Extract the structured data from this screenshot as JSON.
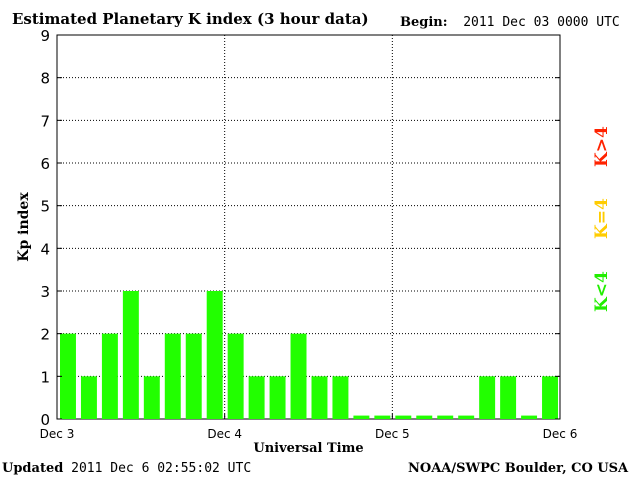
{
  "header": {
    "title": "Estimated Planetary K index (3 hour data)",
    "begin_label": "Begin:",
    "begin_value": "2011 Dec 03 0000 UTC"
  },
  "footer": {
    "updated_label": "Updated",
    "updated_value": "2011 Dec  6 02:55:02 UTC",
    "source": "NOAA/SWPC Boulder, CO USA"
  },
  "legend": [
    {
      "label": "K<4",
      "color": "#22ee00"
    },
    {
      "label": "K=4",
      "color": "#ffcc00"
    },
    {
      "label": "K>4",
      "color": "#ff2200"
    }
  ],
  "chart_data": {
    "type": "bar",
    "title": "Estimated Planetary K index (3 hour data)",
    "xlabel": "Universal Time",
    "ylabel": "Kp index",
    "ylim": [
      0,
      9
    ],
    "yticks": [
      "0",
      "1",
      "2",
      "3",
      "4",
      "5",
      "6",
      "7",
      "8",
      "9"
    ],
    "xticks": [
      "Dec 3",
      "Dec 4",
      "Dec 5",
      "Dec 6"
    ],
    "interval_hours": 3,
    "grid": true,
    "bar_color": "#22ff00",
    "series": [
      {
        "values": [
          2,
          1,
          2,
          3,
          1,
          2,
          2,
          3,
          2,
          1,
          1,
          2,
          1,
          1,
          0,
          0,
          0,
          0,
          0,
          0,
          1,
          1,
          0,
          1
        ]
      }
    ]
  }
}
